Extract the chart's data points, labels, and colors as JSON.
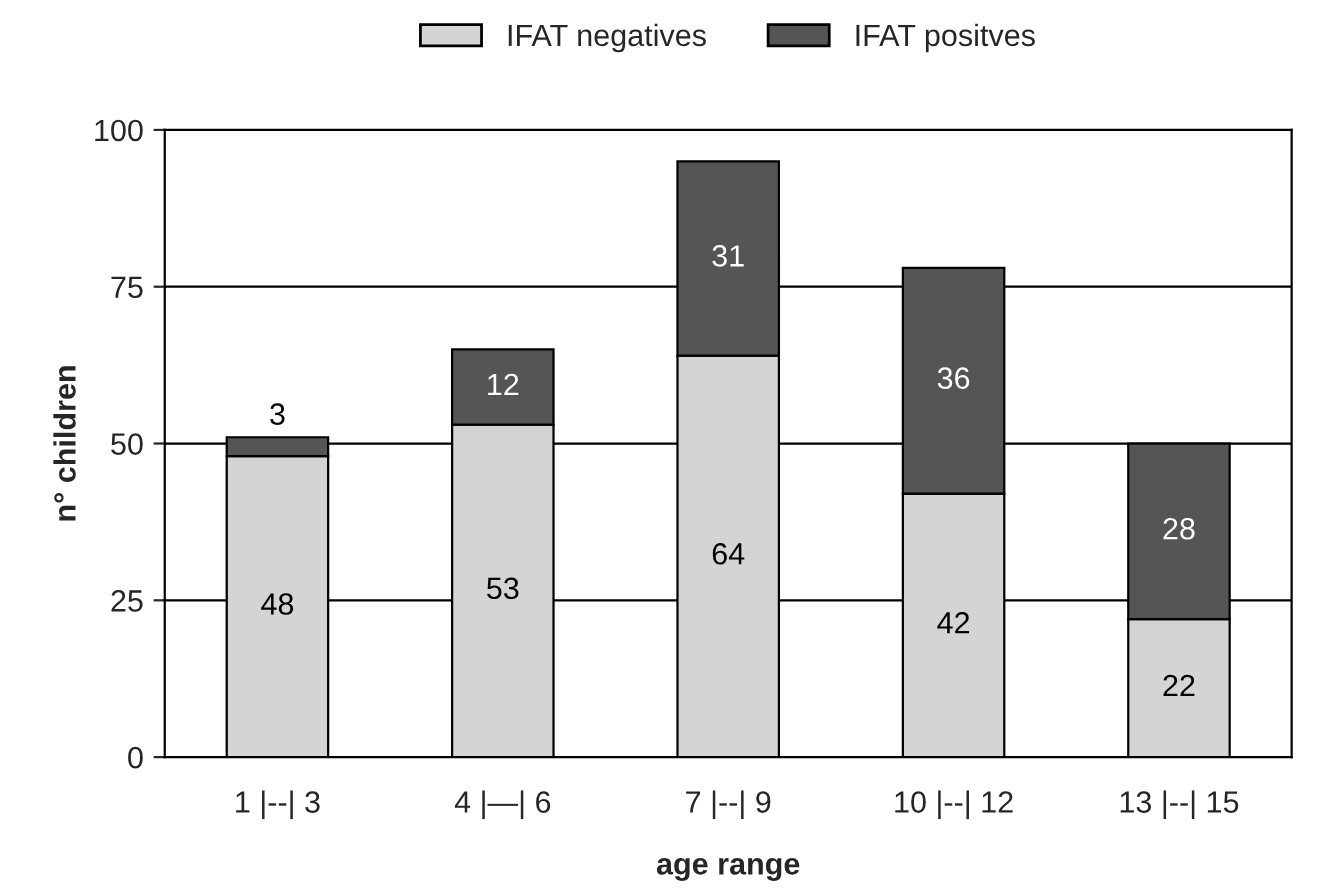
{
  "chart_data": {
    "type": "bar",
    "stacked": true,
    "xlabel": "age range",
    "ylabel": "n° children",
    "categories": [
      "1 |--| 3",
      "4 |—| 6",
      "7 |--| 9",
      "10 |--| 12",
      "13 |--| 15"
    ],
    "series": [
      {
        "name": "IFAT negatives",
        "color": "#d4d4d4",
        "values": [
          48,
          53,
          64,
          42,
          22
        ]
      },
      {
        "name": "IFAT positves",
        "color": "#555555",
        "values": [
          3,
          12,
          31,
          36,
          28
        ]
      }
    ],
    "ylim": [
      0,
      100
    ],
    "yticks": [
      0,
      25,
      50,
      75,
      100
    ],
    "grid": "y",
    "legend": "top",
    "data_labels": true
  }
}
